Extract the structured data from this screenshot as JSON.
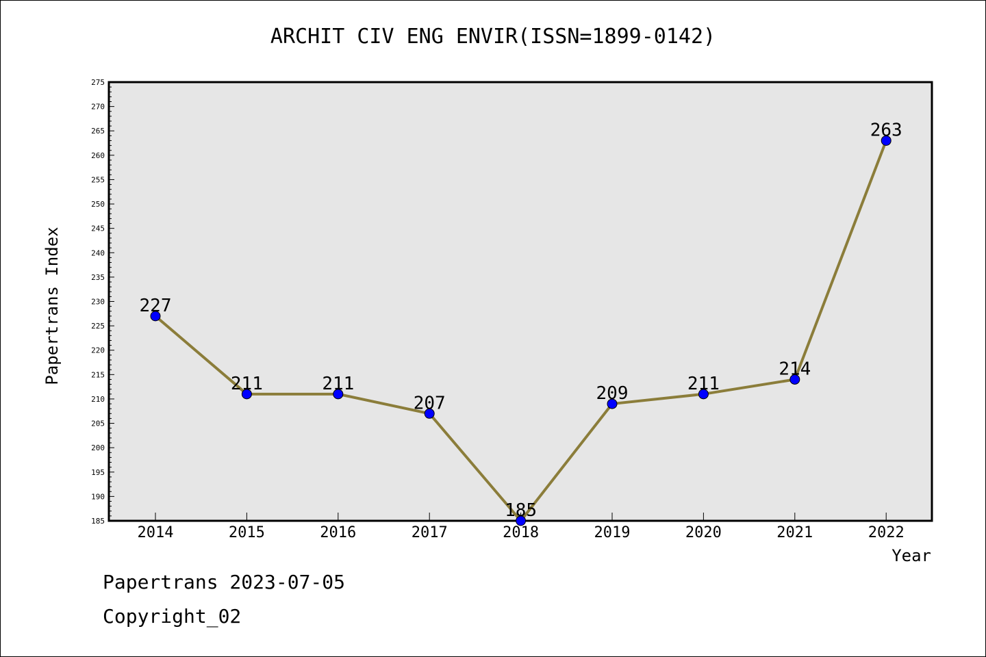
{
  "chart_data": {
    "type": "line",
    "title": "ARCHIT CIV ENG ENVIR(ISSN=1899-0142)",
    "xlabel": "Year",
    "ylabel": "Papertrans Index",
    "categories": [
      "2014",
      "2015",
      "2016",
      "2017",
      "2018",
      "2019",
      "2020",
      "2021",
      "2022"
    ],
    "series": [
      {
        "values": [
          227,
          211,
          211,
          207,
          185,
          209,
          211,
          214,
          263
        ]
      }
    ],
    "data_labels": [
      "227",
      "211",
      "211",
      "207",
      "185",
      "209",
      "211",
      "214",
      "263"
    ],
    "yticks": [
      "185",
      "190",
      "195",
      "200",
      "205",
      "210",
      "215",
      "220",
      "225",
      "230",
      "235",
      "240",
      "245",
      "250",
      "255",
      "260",
      "265",
      "270",
      "275"
    ],
    "ylim": [
      185,
      275
    ],
    "grid": false,
    "line_color": "#8b7d3a",
    "marker_color": "#0000ff",
    "plot_background": "#e6e6e6"
  },
  "footer": {
    "line1": "Papertrans 2023-07-05",
    "line2": "Copyright_02"
  }
}
